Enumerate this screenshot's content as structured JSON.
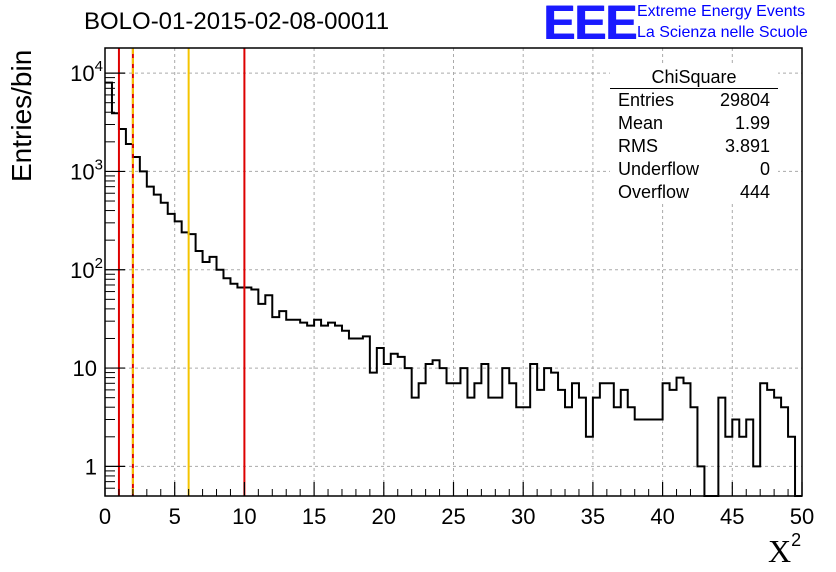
{
  "header": {
    "title": "BOLO-01-2015-02-08-00011",
    "logo_text": "EEE",
    "brand_line1": "Extreme Energy Events",
    "brand_line2": "La Scienza nelle Scuole"
  },
  "stats_box": {
    "title": "ChiSquare",
    "rows": [
      {
        "label": "Entries",
        "value": "29804"
      },
      {
        "label": "Mean",
        "value": "1.99"
      },
      {
        "label": "RMS",
        "value": "3.891"
      },
      {
        "label": "Underflow",
        "value": "0"
      },
      {
        "label": "Overflow",
        "value": "444"
      }
    ]
  },
  "colors": {
    "histogram": "#000000",
    "red_line": "#dd0000",
    "yellow_line": "#f5c400",
    "grid": "#aaaaaa"
  },
  "chart_data": {
    "type": "histogram",
    "title": "BOLO-01-2015-02-08-00011",
    "xlabel": "X",
    "xlabel_superscript": "2",
    "ylabel": "Entries/bin",
    "xlim": [
      0,
      50
    ],
    "ylim": [
      0.5,
      18000
    ],
    "yscale": "log",
    "grid": true,
    "bin_width": 0.5,
    "x_ticks": [
      "0",
      "5",
      "10",
      "15",
      "20",
      "25",
      "30",
      "35",
      "40",
      "45",
      "50"
    ],
    "x_tick_values": [
      0,
      5,
      10,
      15,
      20,
      25,
      30,
      35,
      40,
      45,
      50
    ],
    "y_ticks": [
      {
        "value": 10000,
        "base": "10",
        "exp": "4"
      },
      {
        "value": 1000,
        "base": "10",
        "exp": "3"
      },
      {
        "value": 100,
        "base": "10",
        "exp": "2"
      },
      {
        "value": 10,
        "base": "10",
        "exp": ""
      },
      {
        "value": 1,
        "base": "1",
        "exp": ""
      }
    ],
    "values": [
      8000,
      3900,
      2700,
      1900,
      1400,
      1000,
      700,
      580,
      480,
      370,
      310,
      240,
      230,
      155,
      120,
      135,
      100,
      82,
      72,
      66,
      66,
      63,
      45,
      55,
      33,
      38,
      31,
      31,
      29,
      27,
      31,
      27,
      29,
      27,
      24,
      20,
      20,
      21,
      9,
      16,
      11,
      14,
      13,
      10,
      5,
      7,
      11,
      12,
      10,
      7,
      7,
      10,
      5,
      7,
      11,
      5,
      5,
      10,
      7,
      4,
      4,
      11,
      6,
      10,
      9,
      6,
      4,
      7,
      5,
      2,
      5,
      7,
      7,
      4,
      6,
      4,
      3,
      3,
      3,
      3,
      7,
      6,
      8,
      7,
      4,
      1,
      0,
      0,
      5,
      2,
      3,
      2,
      3,
      1,
      7,
      6,
      5,
      4,
      2,
      0
    ],
    "vertical_lines": [
      {
        "x": 1,
        "color": "red",
        "style": "solid"
      },
      {
        "x": 2,
        "color": "red",
        "style": "solid"
      },
      {
        "x": 2,
        "color": "yellow",
        "style": "dashed"
      },
      {
        "x": 6,
        "color": "yellow",
        "style": "solid"
      },
      {
        "x": 10,
        "color": "red",
        "style": "solid"
      }
    ]
  }
}
